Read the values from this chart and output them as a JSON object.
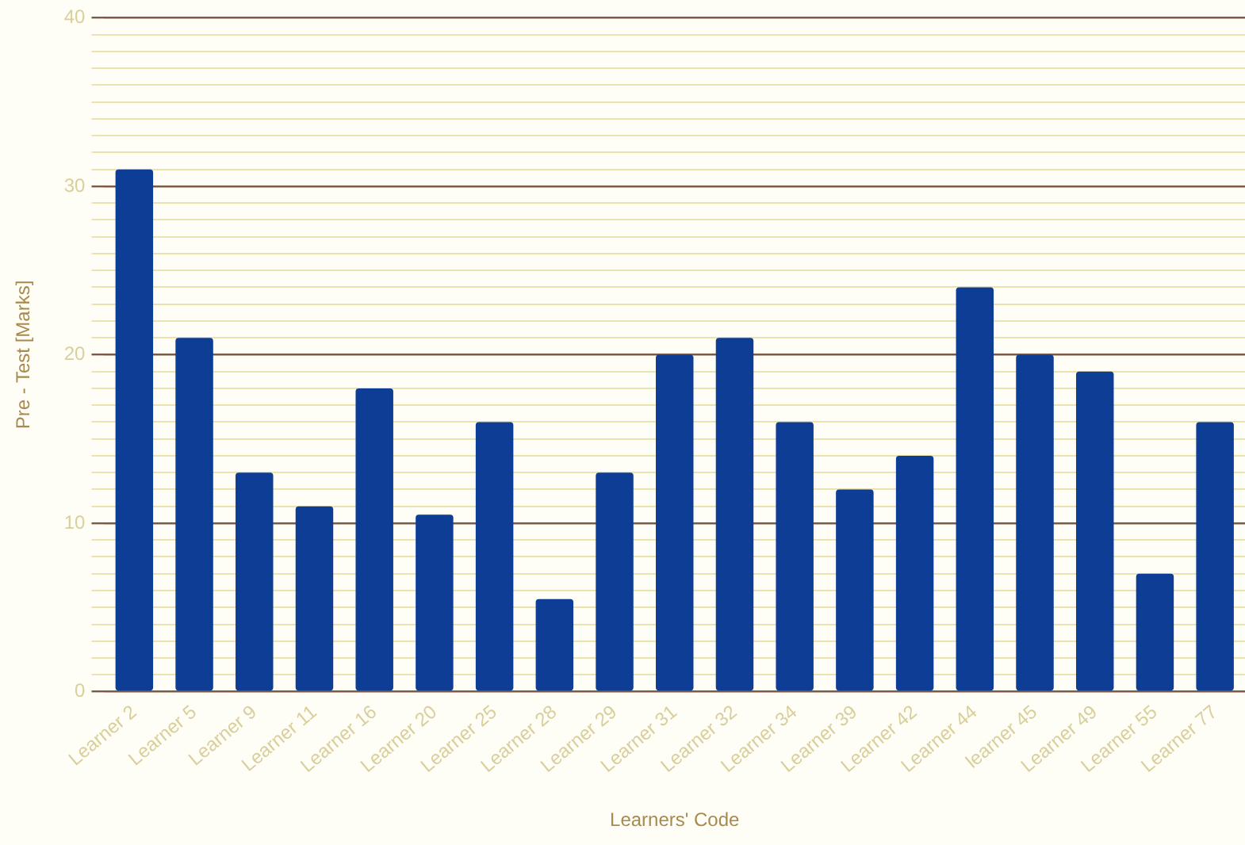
{
  "chart_data": {
    "type": "bar",
    "xlabel": "Learners' Code",
    "ylabel": "Pre - Test [Marks]",
    "categories": [
      "Learner 2",
      "Learner 5",
      "Learner 9",
      "Learner 11",
      "Learner 16",
      "Learner 20",
      "Learner 25",
      "Learner 28",
      "Learner 29",
      "Learner 31",
      "Learner 32",
      "Learner 34",
      "Learner 39",
      "Learner 42",
      "Learner 44",
      "learner 45",
      "Learner 49",
      "Learner 55",
      "Learner 77"
    ],
    "values": [
      31,
      21,
      13,
      11,
      18,
      10.5,
      16,
      5.5,
      13,
      20,
      21,
      16,
      12,
      14,
      24,
      20,
      19,
      7,
      16
    ],
    "color": "#0d3d94",
    "ylim": [
      0,
      40
    ],
    "yticks": [
      0,
      {
        "value": 1,
        "label": null
      },
      {
        "value": 2,
        "label": null
      },
      {
        "value": 3,
        "label": null
      },
      {
        "value": 4,
        "label": null
      },
      {
        "value": 5,
        "label": null
      },
      {
        "value": 6,
        "label": null
      },
      {
        "value": 7,
        "label": null
      },
      {
        "value": 8,
        "label": null
      },
      {
        "value": 9,
        "label": null
      },
      10,
      {
        "value": 11,
        "label": null
      },
      {
        "value": 12,
        "label": null
      },
      {
        "value": 13,
        "label": null
      },
      {
        "value": 14,
        "label": null
      },
      {
        "value": 15,
        "label": null
      },
      {
        "value": 16,
        "label": null
      },
      {
        "value": 17,
        "label": null
      },
      {
        "value": 18,
        "label": null
      },
      {
        "value": 19,
        "label": null
      },
      20,
      {
        "value": 21,
        "label": null
      },
      {
        "value": 22,
        "label": null
      },
      {
        "value": 23,
        "label": null
      },
      {
        "value": 24,
        "label": null
      },
      {
        "value": 25,
        "label": null
      },
      {
        "value": 26,
        "label": null
      },
      {
        "value": 27,
        "label": null
      },
      {
        "value": 28,
        "label": null
      },
      {
        "value": 29,
        "label": null
      },
      30,
      {
        "value": 31,
        "label": null
      },
      {
        "value": 32,
        "label": null
      },
      {
        "value": 33,
        "label": null
      },
      {
        "value": 34,
        "label": null
      },
      {
        "value": 35,
        "label": null
      },
      {
        "value": 36,
        "label": null
      },
      {
        "value": 37,
        "label": null
      },
      {
        "value": 38,
        "label": null
      },
      {
        "value": 39,
        "label": null
      },
      40
    ],
    "grid": "y"
  }
}
